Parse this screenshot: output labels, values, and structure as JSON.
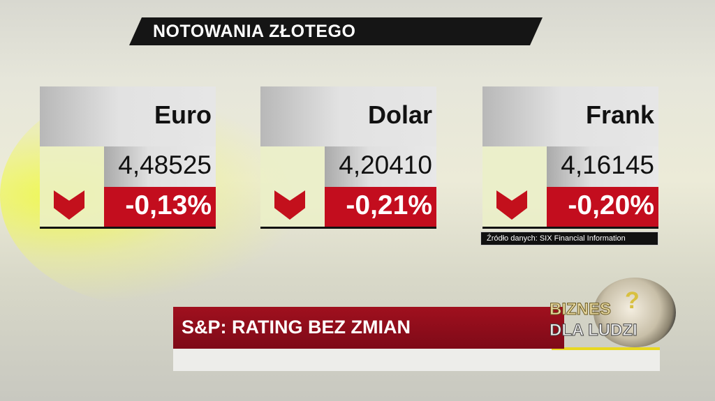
{
  "header": {
    "title": "NOTOWANIA ZŁOTEGO"
  },
  "currencies": [
    {
      "name": "Euro",
      "rate": "4,48525",
      "change": "-0,13%",
      "direction": "down"
    },
    {
      "name": "Dolar",
      "rate": "4,20410",
      "change": "-0,21%",
      "direction": "down"
    },
    {
      "name": "Frank",
      "rate": "4,16145",
      "change": "-0,20%",
      "direction": "down"
    }
  ],
  "source": "Źródło danych: SIX Financial Information",
  "ticker": {
    "headline": "S&P: RATING BEZ ZMIAN"
  },
  "logo": {
    "line1": "BIZNES",
    "line2": "DLA LUDZI"
  },
  "colors": {
    "down": "#c30d1e",
    "ribbon": "#8e0c1a"
  }
}
